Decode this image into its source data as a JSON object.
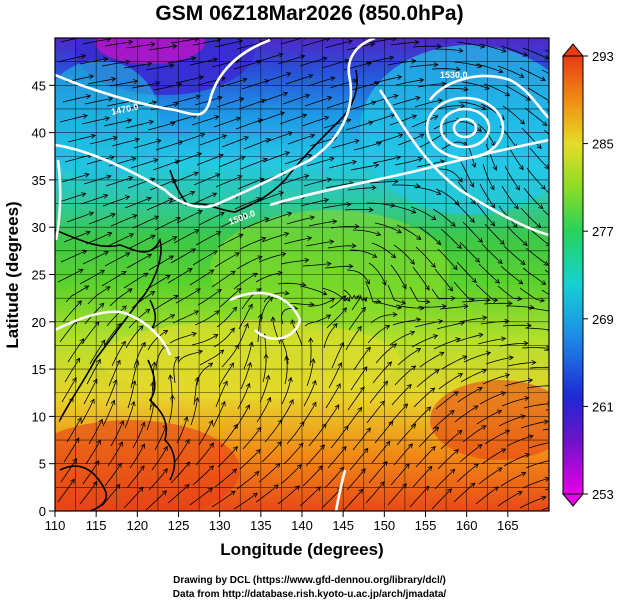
{
  "title": "GSM 06Z18Mar2026 (850.0hPa)",
  "xlabel": "Longitude (degrees)",
  "ylabel": "Latitude  (degrees)",
  "x_ticks": [
    "110",
    "115",
    "120",
    "125",
    "130",
    "135",
    "140",
    "145",
    "150",
    "155",
    "160",
    "165"
  ],
  "y_ticks": [
    "0",
    "5",
    "10",
    "15",
    "20",
    "25",
    "30",
    "35",
    "40",
    "45"
  ],
  "colorbar_ticks": [
    "253",
    "261",
    "269",
    "277",
    "285",
    "293"
  ],
  "contour_labels": [
    "1470.0",
    "1500.0",
    "1530.0"
  ],
  "credit_line1": "Drawing by DCL (https://www.gfd-dennou.org/library/dcl/)",
  "credit_line2": "Data from http://database.rish.kyoto-u.ac.jp/arch/jmadata/",
  "colors": {
    "cold": "#c800c8",
    "blue": "#1e3cdc",
    "cyan": "#14c8e6",
    "green": "#46d228",
    "yellow": "#e6e628",
    "orange": "#f0960a",
    "red": "#e63c14",
    "contour": "#ffffff",
    "grid": "#000000"
  },
  "map_data": {
    "lon_range": [
      110,
      170
    ],
    "lat_range": [
      0,
      50
    ],
    "field": "temperature (K)",
    "colorbar_range": [
      253,
      293
    ],
    "features": [
      "streamlines",
      "geopotential height contours",
      "coastlines"
    ]
  }
}
